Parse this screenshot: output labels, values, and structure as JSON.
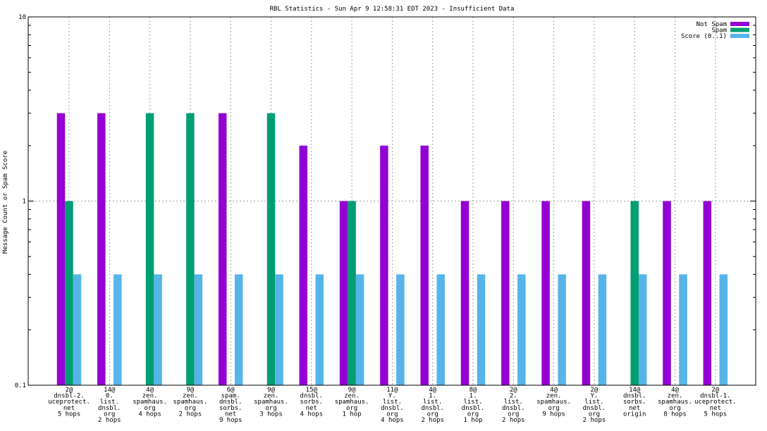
{
  "chart_data": {
    "type": "bar",
    "title": "RBL Statistics - Sun Apr  9 12:58:31 EDT 2023 - Insufficient Data",
    "xlabel": "",
    "ylabel": "Message Count or Spam Score",
    "yscale": "log",
    "ylim": [
      0.1,
      10
    ],
    "yticks": [
      "0.1",
      "1",
      "10"
    ],
    "grid": true,
    "legend_position": "top-right",
    "categories": [
      [
        "2@",
        "dnsbl-2.",
        "uceprotect.",
        "net",
        "5 hops"
      ],
      [
        "14@",
        "0.",
        "list.",
        "dnsbl.",
        "org",
        "2 hops"
      ],
      [
        "4@",
        "zen.",
        "spamhaus.",
        "org",
        "4 hops"
      ],
      [
        "9@",
        "zen.",
        "spamhaus.",
        "org",
        "2 hops"
      ],
      [
        "6@",
        "spam.",
        "dnsbl.",
        "sorbs.",
        "net",
        "9 hops"
      ],
      [
        "9@",
        "zen.",
        "spamhaus.",
        "org",
        "3 hops"
      ],
      [
        "15@",
        "dnsbl.",
        "sorbs.",
        "net",
        "4 hops"
      ],
      [
        "9@",
        "zen.",
        "spamhaus.",
        "org",
        "1 hop"
      ],
      [
        "11@",
        "Y.",
        "list.",
        "dnsbl.",
        "org",
        "4 hops"
      ],
      [
        "4@",
        "1.",
        "list.",
        "dnsbl.",
        "org",
        "2 hops"
      ],
      [
        "8@",
        "1.",
        "list.",
        "dnsbl.",
        "org",
        "1 hop"
      ],
      [
        "2@",
        "2.",
        "list.",
        "dnsbl.",
        "org",
        "2 hops"
      ],
      [
        "4@",
        "zen.",
        "spamhaus.",
        "org",
        "9 hops"
      ],
      [
        "2@",
        "Y.",
        "list.",
        "dnsbl.",
        "org",
        "2 hops"
      ],
      [
        "14@",
        "dnsbl.",
        "sorbs.",
        "net",
        "origin"
      ],
      [
        "4@",
        "zen.",
        "spamhaus.",
        "org",
        "8 hops"
      ],
      [
        "2@",
        "dnsbl-1.",
        "uceprotect.",
        "net",
        "5 hops"
      ]
    ],
    "series": [
      {
        "name": "Not Spam",
        "color": "#9400d3",
        "values": [
          3,
          3,
          null,
          null,
          3,
          null,
          2,
          1,
          2,
          2,
          1,
          1,
          1,
          1,
          null,
          1,
          1
        ]
      },
      {
        "name": "Spam",
        "color": "#009e73",
        "values": [
          1,
          null,
          3,
          3,
          null,
          3,
          null,
          1,
          null,
          null,
          null,
          null,
          null,
          null,
          1,
          null,
          null
        ]
      },
      {
        "name": "Score (0..1)",
        "color": "#56b4e9",
        "values": [
          0.4,
          0.4,
          0.4,
          0.4,
          0.4,
          0.4,
          0.4,
          0.4,
          0.4,
          0.4,
          0.4,
          0.4,
          0.4,
          0.4,
          0.4,
          0.4,
          0.4
        ]
      }
    ]
  }
}
